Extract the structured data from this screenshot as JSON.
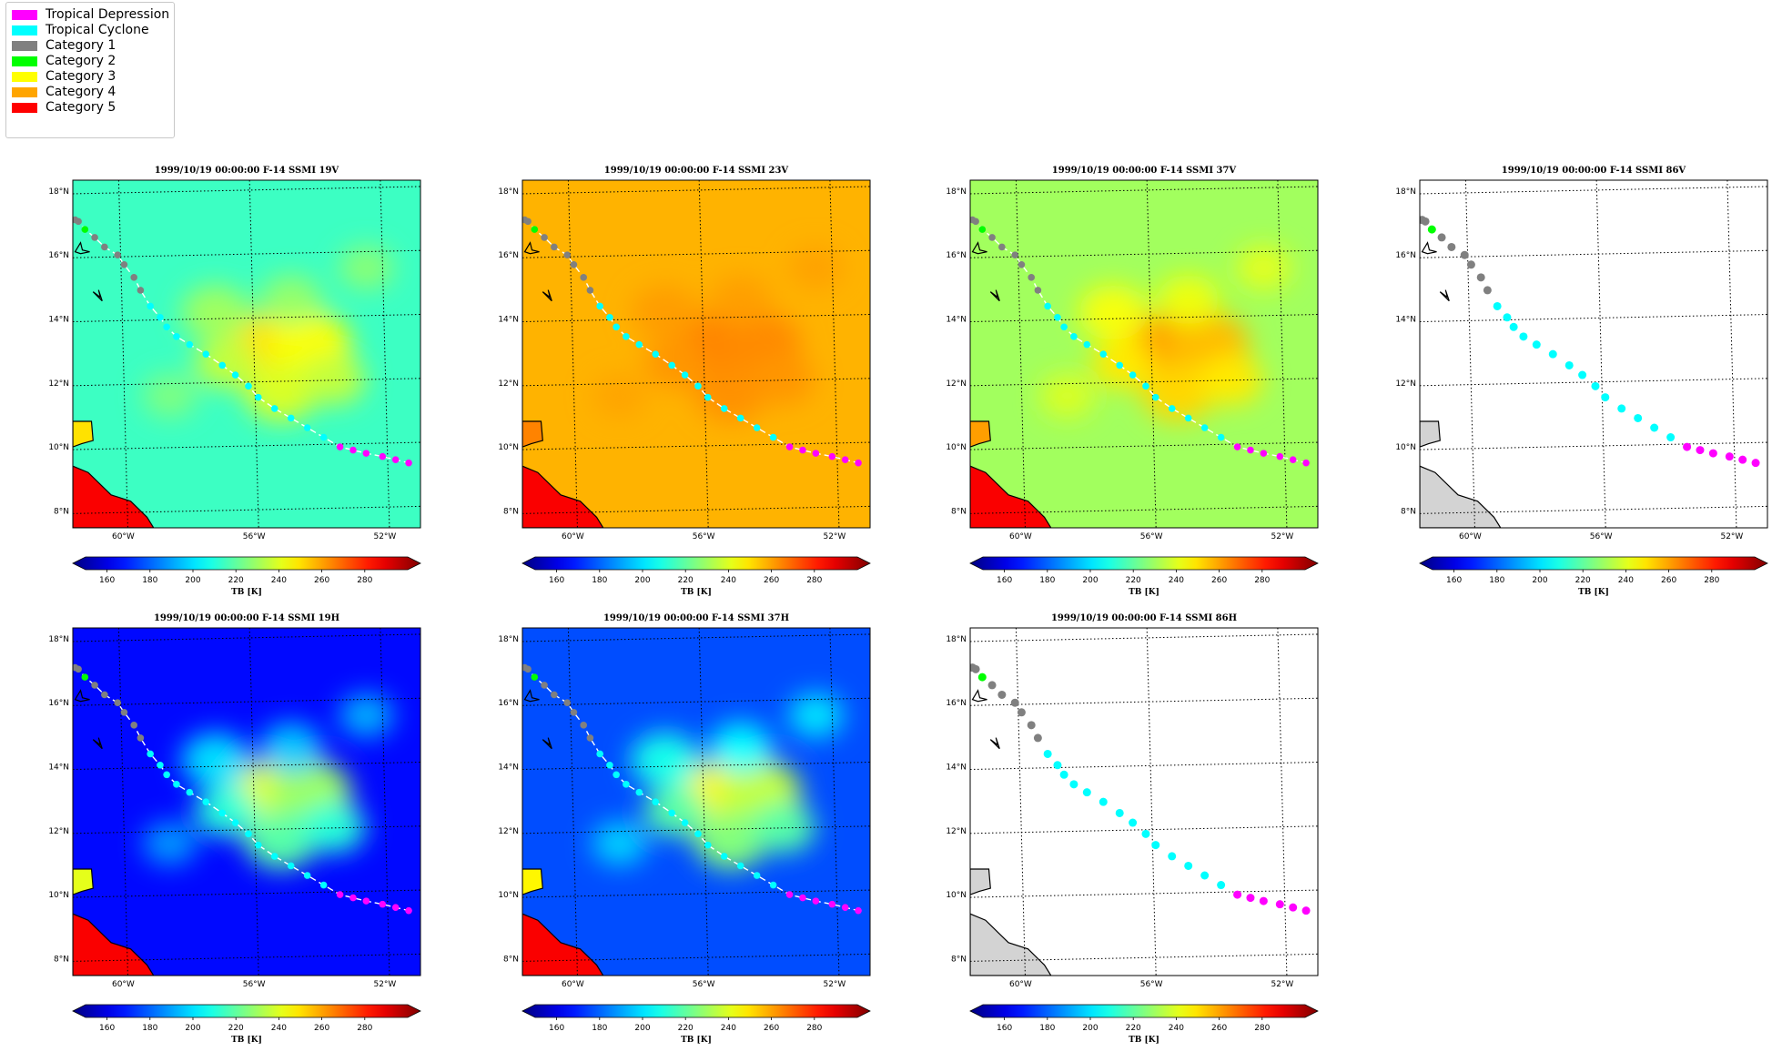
{
  "legend": {
    "items": [
      {
        "label": "Tropical Depression",
        "color": "#ff00ff"
      },
      {
        "label": "Tropical Cyclone",
        "color": "#00ffff"
      },
      {
        "label": "Category 1",
        "color": "#808080"
      },
      {
        "label": "Category 2",
        "color": "#00ff00"
      },
      {
        "label": "Category 3",
        "color": "#ffff00"
      },
      {
        "label": "Category 4",
        "color": "#ffa500"
      },
      {
        "label": "Category 5",
        "color": "#ff0000"
      }
    ]
  },
  "colorbar": {
    "label": "TB [K]",
    "ticks": [
      160,
      180,
      200,
      220,
      240,
      260,
      280
    ],
    "range": [
      150,
      300
    ],
    "colormap": "jet"
  },
  "map": {
    "lat_ticks": [
      "8°N",
      "10°N",
      "12°N",
      "14°N",
      "16°N",
      "18°N"
    ],
    "lon_ticks": [
      "60°W",
      "56°W",
      "52°W"
    ]
  },
  "chart_data": [
    {
      "type": "heatmap",
      "title": "1999/10/19 00:00:00  F-14 SSMI 19V",
      "field_mean_K": 215,
      "storm_core_K": 248
    },
    {
      "type": "heatmap",
      "title": "1999/10/19 00:00:00  F-14 SSMI 23V",
      "field_mean_K": 255,
      "storm_core_K": 262
    },
    {
      "type": "heatmap",
      "title": "1999/10/19 00:00:00  F-14 SSMI 37V",
      "field_mean_K": 230,
      "storm_core_K": 258
    },
    {
      "type": "heatmap",
      "title": "1999/10/19 00:00:00  F-14 SSMI 86V",
      "field_mean_K": null,
      "storm_core_K": null
    },
    {
      "type": "heatmap",
      "title": "1999/10/19 00:00:00  F-14 SSMI 19H",
      "field_mean_K": 170,
      "storm_core_K": 240
    },
    {
      "type": "heatmap",
      "title": "1999/10/19 00:00:00  F-14 SSMI 37H",
      "field_mean_K": 180,
      "storm_core_K": 245
    },
    {
      "type": "heatmap",
      "title": "1999/10/19 00:00:00  F-14 SSMI 86H",
      "field_mean_K": null,
      "storm_core_K": null
    }
  ],
  "track": {
    "lon": [
      -61.5,
      -61.4,
      -61.2,
      -60.9,
      -60.6,
      -60.2,
      -60.0,
      -59.7,
      -59.5,
      -59.2,
      -58.9,
      -58.7,
      -58.4,
      -58.0,
      -57.5,
      -57.0,
      -56.6,
      -56.2,
      -55.9,
      -55.4,
      -54.9,
      -54.4,
      -53.9,
      -53.4,
      -53.0,
      -52.6,
      -52.1,
      -51.7,
      -51.3
    ],
    "lat": [
      17.1,
      17.05,
      16.8,
      16.55,
      16.25,
      16.0,
      15.7,
      15.3,
      14.9,
      14.4,
      14.05,
      13.75,
      13.45,
      13.2,
      12.9,
      12.55,
      12.25,
      11.9,
      11.55,
      11.2,
      10.9,
      10.6,
      10.3,
      10.0,
      9.9,
      9.8,
      9.7,
      9.6,
      9.5
    ],
    "cat": [
      "cat1",
      "cat1",
      "cat2",
      "cat1",
      "cat1",
      "cat1",
      "cat1",
      "cat1",
      "cat1",
      "tc",
      "tc",
      "tc",
      "tc",
      "tc",
      "tc",
      "tc",
      "tc",
      "tc",
      "tc",
      "tc",
      "tc",
      "tc",
      "tc",
      "td",
      "td",
      "td",
      "td",
      "td",
      "td"
    ]
  }
}
